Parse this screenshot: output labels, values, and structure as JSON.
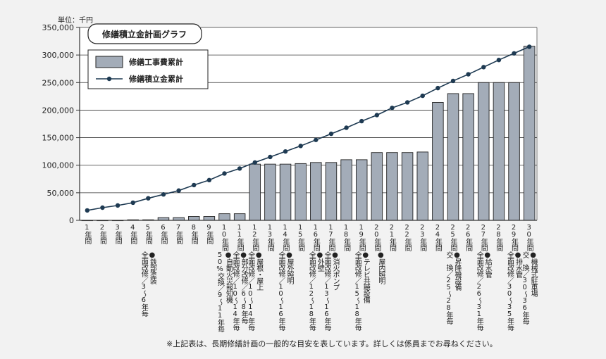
{
  "unit_label": "単位：千円",
  "footnote": "※上記表は、長期修繕計画の一般的な目安を表しています。詳しくは係員までお尋ねください。",
  "colors": {
    "bar_fill": "#a3acb8",
    "bar_stroke": "#222222",
    "line": "#1e3a52",
    "plot_bg": "#ffffff",
    "page_bg": "#f2f2f2"
  },
  "chart_data": {
    "type": "bar",
    "title": "修繕積立金計画グラフ",
    "categories": [
      "1年間",
      "2年間",
      "3年間",
      "4年間",
      "5年間",
      "6年間",
      "7年間",
      "8年間",
      "9年間",
      "10年間",
      "11年間",
      "12年間",
      "13年間",
      "14年間",
      "15年間",
      "16年間",
      "17年間",
      "18年間",
      "19年間",
      "20年間",
      "21年間",
      "22年間",
      "23年間",
      "24年間",
      "25年間",
      "26年間",
      "27年間",
      "28年間",
      "29年間",
      "30年間"
    ],
    "series": [
      {
        "name": "修繕工事費累計",
        "type": "bar",
        "values": [
          0,
          0,
          0,
          1000,
          1000,
          5000,
          5000,
          7000,
          7000,
          12000,
          12000,
          102000,
          102000,
          102000,
          103000,
          105000,
          105000,
          110000,
          110000,
          123000,
          123000,
          123000,
          124000,
          214000,
          230000,
          230000,
          250000,
          250000,
          250000,
          316000
        ]
      },
      {
        "name": "修繕積立金累計",
        "type": "line",
        "values": [
          18000,
          23000,
          27000,
          32000,
          40000,
          47000,
          54000,
          64000,
          73000,
          85000,
          94000,
          105000,
          115000,
          125000,
          135000,
          146000,
          157000,
          168000,
          180000,
          191000,
          204000,
          214000,
          226000,
          240000,
          253000,
          265000,
          278000,
          291000,
          303000,
          315000
        ]
      }
    ],
    "yticks": [
      "0",
      "50,000",
      "100,000",
      "150,000",
      "200,000",
      "250,000",
      "300,000",
      "350,000"
    ],
    "ylim": [
      0,
      350000
    ],
    "grid": true,
    "legend": "top-left",
    "annotations": [
      {
        "at": 4,
        "lines": [
          "全面改修／3〜6年毎",
          "●鉄部塗装"
        ]
      },
      {
        "at": 9,
        "lines": [
          "50%交換／9〜11年毎",
          "●自動火災報知機"
        ]
      },
      {
        "at": 10,
        "lines": [
          "全面改修／10〜14年毎",
          "●部分改修／6〜8年毎"
        ]
      },
      {
        "at": 11,
        "lines": [
          "全面改修／10〜14年毎",
          "●屋根・屋上"
        ]
      },
      {
        "at": 13,
        "lines": [
          "全面改修／10〜16年毎",
          "●屋外照明"
        ]
      },
      {
        "at": 15,
        "lines": [
          "全面改修／12〜18年毎",
          "●外壁"
        ]
      },
      {
        "at": 16,
        "lines": [
          "全面改修／13〜16年毎",
          "●消火ポンプ"
        ]
      },
      {
        "at": 18,
        "lines": [
          "全面改修／15〜18年毎",
          "●テレビ共聴設備"
        ]
      },
      {
        "at": 19,
        "lines": [
          "",
          "●屋内照明"
        ]
      },
      {
        "at": 24,
        "lines": [
          "交　換／25〜28年毎",
          "●昇降機設備"
        ]
      },
      {
        "at": 26,
        "lines": [
          "全面改修／26〜31年毎",
          "●給水管"
        ]
      },
      {
        "at": 28,
        "lines": [
          "全面改修／30〜35年毎",
          "●排水管"
        ]
      },
      {
        "at": 29,
        "lines": [
          "交　換／30〜36年毎",
          "●機械式駐車場"
        ]
      }
    ]
  }
}
